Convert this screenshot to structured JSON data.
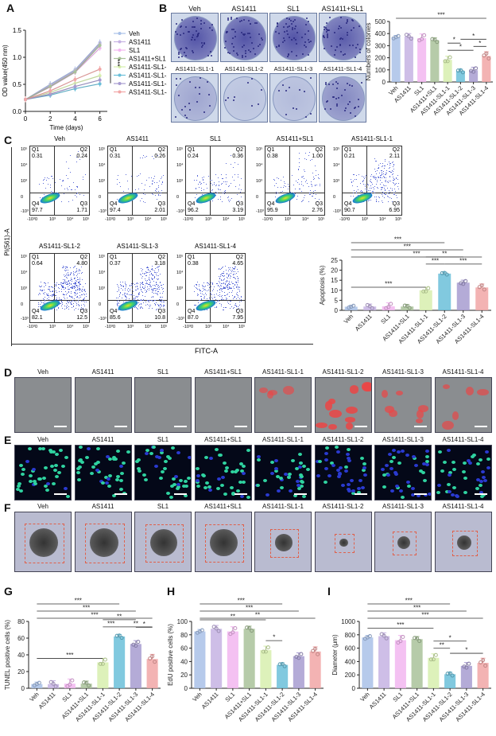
{
  "groups": [
    "Veh",
    "AS1411",
    "SL1",
    "AS1411+SL1",
    "AS1411-SL1-1",
    "AS1411-SL1-2",
    "AS1411-SL1-3",
    "AS1411-SL1-4"
  ],
  "colors": [
    "#a9c1e8",
    "#c6b3e3",
    "#f2b6f0",
    "#a9c29a",
    "#d7efae",
    "#6bbfd9",
    "#a79cd0",
    "#f1a6a6"
  ],
  "panel_letters": {
    "A": "A",
    "B": "B",
    "C": "C",
    "D": "D",
    "E": "E",
    "F": "F",
    "G": "G",
    "H": "H",
    "I": "I"
  },
  "chart_data": [
    {
      "id": "A",
      "type": "line",
      "x": [
        0,
        2,
        4,
        6
      ],
      "xlabel": "Time (days)",
      "ylabel": "OD value(450 nm)",
      "xticks": [
        "0",
        "2",
        "4",
        "6"
      ],
      "yticks": [
        "0.0",
        "0.5",
        "1.0",
        "1.5"
      ],
      "xlim": [
        0,
        6.6
      ],
      "ylim": [
        0,
        1.5
      ],
      "significance": "***",
      "series": [
        {
          "name": "Veh",
          "values": [
            0.22,
            0.5,
            0.77,
            1.27
          ]
        },
        {
          "name": "AS1411",
          "values": [
            0.22,
            0.48,
            0.75,
            1.25
          ]
        },
        {
          "name": "SL1",
          "values": [
            0.22,
            0.45,
            0.72,
            1.17
          ]
        },
        {
          "name": "AS1411+SL1",
          "values": [
            0.22,
            0.46,
            0.73,
            1.22
          ]
        },
        {
          "name": "AS1411-SL1-1",
          "values": [
            0.22,
            0.35,
            0.52,
            0.66
          ]
        },
        {
          "name": "AS1411-SL1-2",
          "values": [
            0.22,
            0.3,
            0.42,
            0.51
          ]
        },
        {
          "name": "AS1411-SL1-3",
          "values": [
            0.22,
            0.32,
            0.46,
            0.58
          ]
        },
        {
          "name": "AS1411-SL1-4",
          "values": [
            0.22,
            0.38,
            0.59,
            0.78
          ]
        }
      ]
    },
    {
      "id": "B",
      "type": "bar",
      "ylabel": "Numbers of colonies",
      "ylim": [
        0,
        500
      ],
      "yticks": [
        "0",
        "100",
        "200",
        "300",
        "400",
        "500"
      ],
      "values": [
        370,
        375,
        362,
        345,
        183,
        90,
        97,
        215
      ],
      "sig": [
        [
          0,
          7,
          "***"
        ],
        [
          4,
          5,
          "*"
        ],
        [
          4,
          6,
          "*"
        ],
        [
          5,
          7,
          "*"
        ],
        [
          6,
          7,
          "*"
        ]
      ]
    },
    {
      "id": "C",
      "type": "bar",
      "ylabel": "Apoptosis (%)",
      "ylim": [
        0,
        25
      ],
      "yticks": [
        "0",
        "5",
        "10",
        "15",
        "20",
        "25"
      ],
      "values": [
        1.8,
        1.9,
        2.0,
        1.9,
        10.0,
        18.3,
        13.8,
        11.4
      ],
      "sig": [
        [
          0,
          4,
          "***"
        ],
        [
          0,
          5,
          "***"
        ],
        [
          0,
          6,
          "***"
        ],
        [
          0,
          7,
          "***"
        ],
        [
          4,
          5,
          "***"
        ],
        [
          4,
          6,
          "**"
        ],
        [
          5,
          7,
          "***"
        ]
      ]
    },
    {
      "id": "G",
      "type": "bar",
      "ylabel": "TUNEL positive cells (%)",
      "ylim": [
        0,
        80
      ],
      "yticks": [
        "0",
        "20",
        "40",
        "60",
        "80"
      ],
      "values": [
        5,
        5,
        5.5,
        5.5,
        31,
        62,
        53,
        35
      ],
      "sig": [
        [
          0,
          4,
          "***"
        ],
        [
          0,
          5,
          "***"
        ],
        [
          0,
          6,
          "***"
        ],
        [
          0,
          7,
          "***"
        ],
        [
          4,
          5,
          "***"
        ],
        [
          4,
          6,
          "**"
        ],
        [
          5,
          7,
          "**"
        ],
        [
          6,
          7,
          "*"
        ]
      ]
    },
    {
      "id": "H",
      "type": "bar",
      "ylabel": "EdU positive cells (%)",
      "ylim": [
        0,
        100
      ],
      "yticks": [
        "0",
        "20",
        "40",
        "60",
        "80",
        "100"
      ],
      "values": [
        85,
        89,
        85,
        89,
        57,
        35,
        48,
        55
      ],
      "sig": [
        [
          0,
          4,
          "**"
        ],
        [
          0,
          5,
          "***"
        ],
        [
          0,
          6,
          "***"
        ],
        [
          0,
          7,
          "**"
        ],
        [
          4,
          5,
          "*"
        ]
      ]
    },
    {
      "id": "I",
      "type": "bar",
      "ylabel": "Diameter (μm)",
      "ylim": [
        0,
        1000
      ],
      "yticks": [
        "0",
        "200",
        "400",
        "600",
        "800",
        "1000"
      ],
      "values": [
        760,
        780,
        720,
        735,
        455,
        210,
        335,
        380
      ],
      "sig": [
        [
          0,
          4,
          "***"
        ],
        [
          0,
          5,
          "***"
        ],
        [
          0,
          6,
          "***"
        ],
        [
          0,
          7,
          "***"
        ],
        [
          4,
          5,
          "**"
        ],
        [
          4,
          6,
          "*"
        ],
        [
          5,
          7,
          "*"
        ]
      ]
    }
  ],
  "flow": {
    "xlabel": "FITC-A",
    "ylabel": "PI(561)-A",
    "xticks": [
      "-10³",
      "0",
      "10³",
      "10⁴",
      "10⁵"
    ],
    "yticks": [
      "10⁵",
      "10⁴",
      "10³",
      "0",
      "-10³"
    ],
    "plots": [
      {
        "title": "Veh",
        "Q1": "0.31",
        "Q2": "0.24",
        "Q3": "1.71",
        "Q4": "97.7"
      },
      {
        "title": "AS1411",
        "Q1": "0.31",
        "Q2": "0.26",
        "Q3": "2.01",
        "Q4": "97.4"
      },
      {
        "title": "SL1",
        "Q1": "0.24",
        "Q2": "0.36",
        "Q3": "3.19",
        "Q4": "96.2"
      },
      {
        "title": "AS1411+SL1",
        "Q1": "0.38",
        "Q2": "1.00",
        "Q3": "2.76",
        "Q4": "95.9"
      },
      {
        "title": "AS1411-SL1-1",
        "Q1": "0.21",
        "Q2": "2.11",
        "Q3": "6.95",
        "Q4": "90.7"
      },
      {
        "title": "AS1411-SL1-2",
        "Q1": "0.64",
        "Q2": "4.80",
        "Q3": "12.5",
        "Q4": "82.1"
      },
      {
        "title": "AS1411-SL1-3",
        "Q1": "0.37",
        "Q2": "3.18",
        "Q3": "10.8",
        "Q4": "85.6"
      },
      {
        "title": "AS1411-SL1-4",
        "Q1": "0.38",
        "Q2": "4.65",
        "Q3": "7.95",
        "Q4": "87.0"
      }
    ],
    "quadrant_names": [
      "Q1",
      "Q2",
      "Q3",
      "Q4"
    ]
  },
  "images": {
    "D_red_intensity": [
      0,
      0,
      0,
      0,
      0.35,
      0.9,
      0.55,
      0.45
    ],
    "F_spheroid_relative_size": [
      1,
      1,
      0.95,
      0.95,
      0.6,
      0.3,
      0.45,
      0.5
    ]
  }
}
